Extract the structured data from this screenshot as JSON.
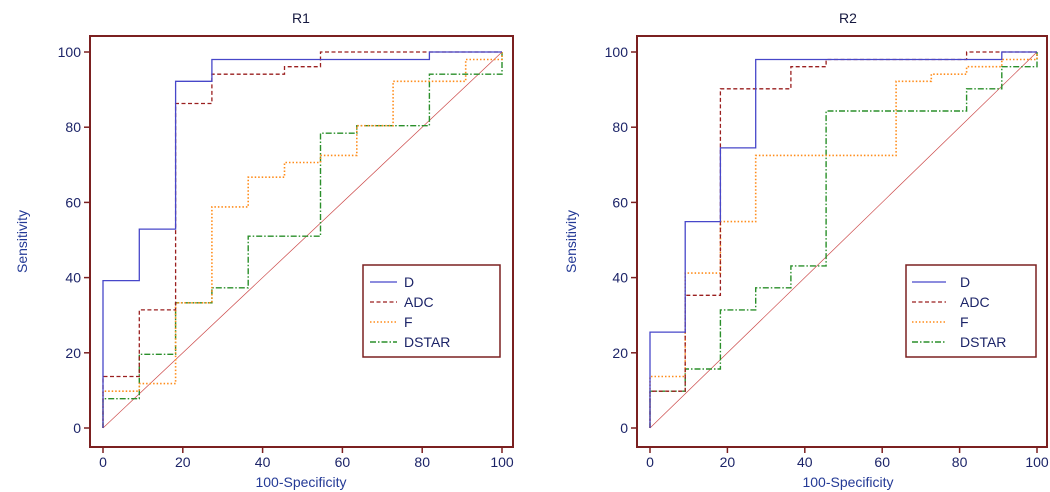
{
  "chart_data": [
    {
      "type": "line",
      "title": "R1",
      "xlabel": "100-Specificity",
      "ylabel": "Sensitivity",
      "xlim": [
        0,
        100
      ],
      "ylim": [
        0,
        100
      ],
      "xticks": [
        0,
        20,
        40,
        60,
        80,
        100
      ],
      "yticks": [
        0,
        20,
        40,
        60,
        80,
        100
      ],
      "grid": false,
      "legend": "lower-right",
      "reference_line": [
        [
          0,
          0
        ],
        [
          100,
          100
        ]
      ],
      "series": [
        {
          "name": "D",
          "color": "#4747c9",
          "points": [
            [
              0,
              0
            ],
            [
              0,
              39.2
            ],
            [
              9.1,
              39.2
            ],
            [
              9.1,
              52.9
            ],
            [
              18.2,
              52.9
            ],
            [
              18.2,
              92.2
            ],
            [
              27.3,
              92.2
            ],
            [
              27.3,
              98.0
            ],
            [
              81.8,
              98.0
            ],
            [
              81.8,
              100
            ],
            [
              100,
              100
            ]
          ]
        },
        {
          "name": "ADC",
          "color": "#9a1f1f",
          "points": [
            [
              0,
              0
            ],
            [
              0,
              13.7
            ],
            [
              9.1,
              13.7
            ],
            [
              9.1,
              31.4
            ],
            [
              18.2,
              31.4
            ],
            [
              18.2,
              86.3
            ],
            [
              27.3,
              86.3
            ],
            [
              27.3,
              94.1
            ],
            [
              45.5,
              94.1
            ],
            [
              45.5,
              96.1
            ],
            [
              54.5,
              96.1
            ],
            [
              54.5,
              100
            ],
            [
              100,
              100
            ]
          ]
        },
        {
          "name": "F",
          "color": "#ff8c1a",
          "points": [
            [
              0,
              0
            ],
            [
              0,
              9.8
            ],
            [
              9.1,
              9.8
            ],
            [
              9.1,
              11.8
            ],
            [
              18.2,
              11.8
            ],
            [
              18.2,
              33.3
            ],
            [
              27.3,
              33.3
            ],
            [
              27.3,
              58.8
            ],
            [
              36.4,
              58.8
            ],
            [
              36.4,
              66.7
            ],
            [
              45.5,
              66.7
            ],
            [
              45.5,
              70.6
            ],
            [
              54.5,
              70.6
            ],
            [
              54.5,
              72.5
            ],
            [
              63.6,
              72.5
            ],
            [
              63.6,
              80.4
            ],
            [
              72.7,
              80.4
            ],
            [
              72.7,
              92.2
            ],
            [
              90.9,
              92.2
            ],
            [
              90.9,
              98.0
            ],
            [
              100,
              98.0
            ],
            [
              100,
              100
            ]
          ]
        },
        {
          "name": "DSTAR",
          "color": "#2a8f2a",
          "points": [
            [
              0,
              0
            ],
            [
              0,
              7.8
            ],
            [
              9.1,
              7.8
            ],
            [
              9.1,
              19.6
            ],
            [
              18.2,
              19.6
            ],
            [
              18.2,
              33.3
            ],
            [
              27.3,
              33.3
            ],
            [
              27.3,
              37.3
            ],
            [
              36.4,
              37.3
            ],
            [
              36.4,
              51.0
            ],
            [
              54.5,
              51.0
            ],
            [
              54.5,
              78.4
            ],
            [
              63.6,
              78.4
            ],
            [
              63.6,
              80.4
            ],
            [
              81.8,
              80.4
            ],
            [
              81.8,
              94.1
            ],
            [
              100,
              94.1
            ],
            [
              100,
              100
            ]
          ]
        }
      ]
    },
    {
      "type": "line",
      "title": "R2",
      "xlabel": "100-Specificity",
      "ylabel": "Sensitivity",
      "xlim": [
        0,
        100
      ],
      "ylim": [
        0,
        100
      ],
      "xticks": [
        0,
        20,
        40,
        60,
        80,
        100
      ],
      "yticks": [
        0,
        20,
        40,
        60,
        80,
        100
      ],
      "grid": false,
      "legend": "lower-right",
      "reference_line": [
        [
          0,
          0
        ],
        [
          100,
          100
        ]
      ],
      "series": [
        {
          "name": "D",
          "color": "#4747c9",
          "points": [
            [
              0,
              0
            ],
            [
              0,
              25.5
            ],
            [
              9.1,
              25.5
            ],
            [
              9.1,
              54.9
            ],
            [
              18.2,
              54.9
            ],
            [
              18.2,
              74.5
            ],
            [
              27.3,
              74.5
            ],
            [
              27.3,
              98.0
            ],
            [
              90.9,
              98.0
            ],
            [
              90.9,
              100
            ],
            [
              100,
              100
            ]
          ]
        },
        {
          "name": "ADC",
          "color": "#9a1f1f",
          "points": [
            [
              0,
              0
            ],
            [
              0,
              9.8
            ],
            [
              9.1,
              9.8
            ],
            [
              9.1,
              35.3
            ],
            [
              18.2,
              35.3
            ],
            [
              18.2,
              90.2
            ],
            [
              36.4,
              90.2
            ],
            [
              36.4,
              96.1
            ],
            [
              45.5,
              96.1
            ],
            [
              45.5,
              98.0
            ],
            [
              81.8,
              98.0
            ],
            [
              81.8,
              100
            ],
            [
              100,
              100
            ]
          ]
        },
        {
          "name": "F",
          "color": "#ff8c1a",
          "points": [
            [
              0,
              0
            ],
            [
              0,
              13.7
            ],
            [
              9.1,
              13.7
            ],
            [
              9.1,
              41.2
            ],
            [
              18.2,
              41.2
            ],
            [
              18.2,
              54.9
            ],
            [
              27.3,
              54.9
            ],
            [
              27.3,
              72.5
            ],
            [
              63.6,
              72.5
            ],
            [
              63.6,
              92.2
            ],
            [
              72.7,
              92.2
            ],
            [
              72.7,
              94.1
            ],
            [
              81.8,
              94.1
            ],
            [
              81.8,
              96.1
            ],
            [
              90.9,
              96.1
            ],
            [
              90.9,
              98.0
            ],
            [
              100,
              98.0
            ],
            [
              100,
              100
            ]
          ]
        },
        {
          "name": "DSTAR",
          "color": "#2a8f2a",
          "points": [
            [
              0,
              0
            ],
            [
              0,
              9.8
            ],
            [
              9.1,
              9.8
            ],
            [
              9.1,
              15.7
            ],
            [
              18.2,
              15.7
            ],
            [
              18.2,
              31.4
            ],
            [
              27.3,
              31.4
            ],
            [
              27.3,
              37.3
            ],
            [
              36.4,
              37.3
            ],
            [
              36.4,
              43.1
            ],
            [
              45.5,
              43.1
            ],
            [
              45.5,
              84.3
            ],
            [
              81.8,
              84.3
            ],
            [
              81.8,
              90.2
            ],
            [
              90.9,
              90.2
            ],
            [
              90.9,
              96.1
            ],
            [
              100,
              96.1
            ],
            [
              100,
              100
            ]
          ]
        }
      ]
    }
  ]
}
